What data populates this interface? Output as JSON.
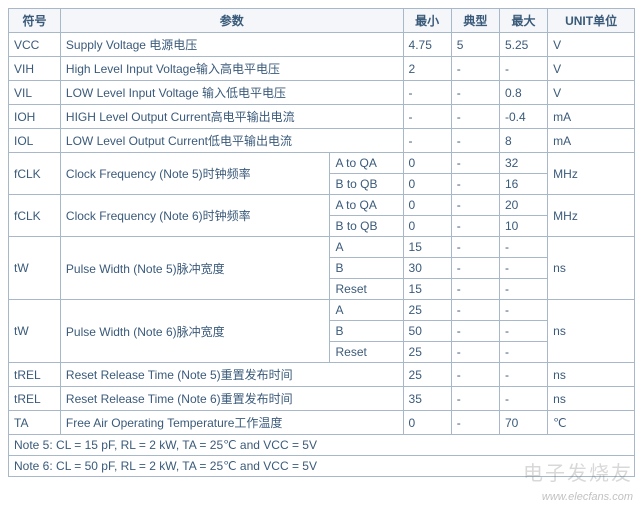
{
  "headers": {
    "symbol": "符号",
    "param": "参数",
    "min": "最小",
    "typ": "典型",
    "max": "最大",
    "unit": "UNIT单位"
  },
  "rows": [
    {
      "sym": "VCC",
      "param": "Supply Voltage 电源电压",
      "min": "4.75",
      "typ": "5",
      "max": "5.25",
      "unit": "V"
    },
    {
      "sym": "VIH",
      "param": "High Level Input Voltage输入高电平电压",
      "min": "2",
      "typ": "-",
      "max": "-",
      "unit": "V"
    },
    {
      "sym": "VIL",
      "param": "LOW Level Input Voltage 输入低电平电压",
      "min": "-",
      "typ": "-",
      "max": "0.8",
      "unit": "V"
    },
    {
      "sym": "IOH",
      "param": "HIGH Level Output Current高电平输出电流",
      "min": "-",
      "typ": "-",
      "max": "-0.4",
      "unit": "mA"
    },
    {
      "sym": "IOL",
      "param": "LOW Level Output Current低电平输出电流",
      "min": "-",
      "typ": "-",
      "max": "8",
      "unit": "mA"
    }
  ],
  "fclk5": {
    "sym": "fCLK",
    "param": "Clock Frequency (Note 5)时钟频率",
    "unit": "MHz",
    "sub": [
      {
        "cond": "A to QA",
        "min": "0",
        "typ": "-",
        "max": "32"
      },
      {
        "cond": "B to QB",
        "min": "0",
        "typ": "-",
        "max": "16"
      }
    ]
  },
  "fclk6": {
    "sym": "fCLK",
    "param": "Clock Frequency (Note 6)时钟频率",
    "unit": "MHz",
    "sub": [
      {
        "cond": "A to QA",
        "min": "0",
        "typ": "-",
        "max": "20"
      },
      {
        "cond": "B to QB",
        "min": "0",
        "typ": "-",
        "max": "10"
      }
    ]
  },
  "tw5": {
    "sym": "tW",
    "param": "Pulse Width (Note 5)脉冲宽度",
    "unit": "ns",
    "sub": [
      {
        "cond": "A",
        "min": "15",
        "typ": "-",
        "max": "-"
      },
      {
        "cond": "B",
        "min": "30",
        "typ": "-",
        "max": "-"
      },
      {
        "cond": "Reset",
        "min": "15",
        "typ": "-",
        "max": "-"
      }
    ]
  },
  "tw6": {
    "sym": "tW",
    "param": "Pulse Width (Note 6)脉冲宽度",
    "unit": "ns",
    "sub": [
      {
        "cond": "A",
        "min": "25",
        "typ": "-",
        "max": "-"
      },
      {
        "cond": "B",
        "min": "50",
        "typ": "-",
        "max": "-"
      },
      {
        "cond": "Reset",
        "min": "25",
        "typ": "-",
        "max": "-"
      }
    ]
  },
  "trel5": {
    "sym": "tREL",
    "param": "Reset Release Time (Note 5)重置发布时间",
    "min": "25",
    "typ": "-",
    "max": "-",
    "unit": "ns"
  },
  "trel6": {
    "sym": "tREL",
    "param": "Reset Release Time (Note 6)重置发布时间",
    "min": "35",
    "typ": "-",
    "max": "-",
    "unit": "ns"
  },
  "ta": {
    "sym": "TA",
    "param": "Free Air Operating Temperature工作温度",
    "min": "0",
    "typ": "-",
    "max": "70",
    "unit": "℃"
  },
  "notes": [
    "Note 5: CL = 15 pF, RL = 2 kW, TA = 25℃ and VCC = 5V",
    "Note 6: CL = 50 pF, RL = 2 kW, TA = 25℃ and VCC = 5V"
  ],
  "watermark_cn": "电子发烧友",
  "watermark_en": "www.elecfans.com"
}
